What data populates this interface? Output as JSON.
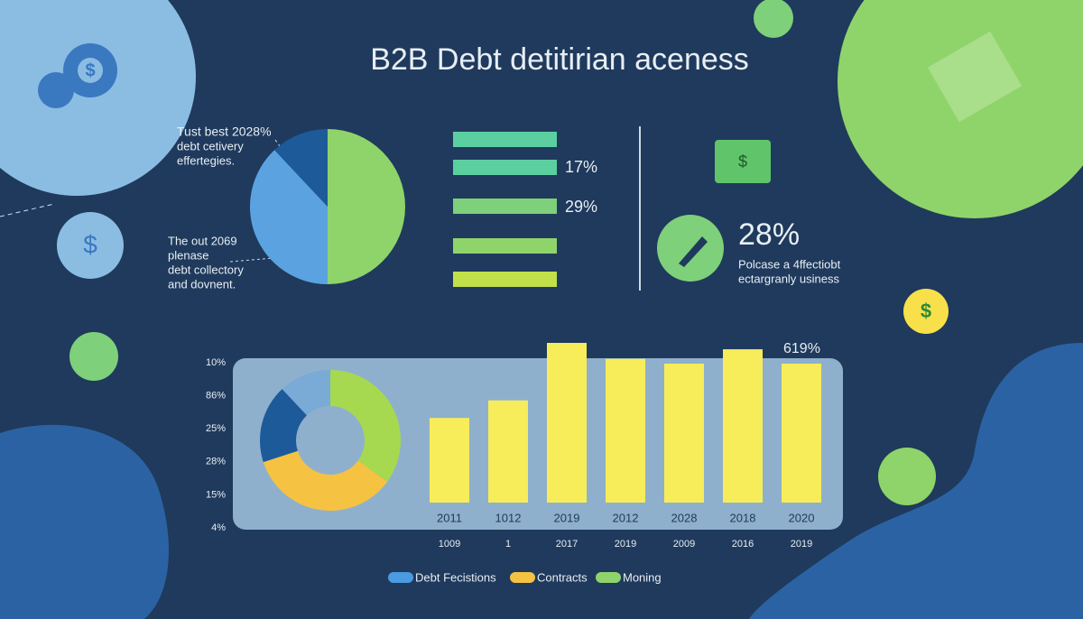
{
  "title": "B2B Debt detitirian aceness",
  "pie": {
    "values": [
      50,
      38,
      12
    ],
    "colors": [
      "#8fd46a",
      "#5aa3e0",
      "#1d5a9a"
    ]
  },
  "pie_notes": [
    [
      "Tust best 2028%",
      "debt cetivery",
      "effertegies."
    ],
    [
      "The out 2069",
      "plenase",
      "debt collectory",
      "and dovnent."
    ]
  ],
  "bar_labels": [
    "17%",
    "29%"
  ],
  "stat": {
    "value": "28%",
    "text": [
      "Polcase a 4ffectiobt",
      "ectargranly usiness"
    ]
  },
  "chart_data": {
    "type": "bar",
    "categories": [
      "2011",
      "1012",
      "2019",
      "2012",
      "2028",
      "2018",
      "2020"
    ],
    "sub_labels": [
      "1009",
      "1",
      "2017",
      "2019",
      "2009",
      "2016",
      "2019"
    ],
    "values": [
      53,
      64,
      100,
      90,
      87,
      96,
      87
    ],
    "color": "#f7ec5a",
    "ylim": [
      0,
      100
    ],
    "axis_labels": [
      "10%",
      "86%",
      "25%",
      "28%",
      "15%",
      "4%"
    ],
    "annotation": "619%",
    "donut": {
      "values": [
        35,
        35,
        18,
        12
      ],
      "colors": [
        "#a6d94f",
        "#f5c242",
        "#1d5a9a",
        "#7aaad6"
      ]
    },
    "series": [
      {
        "name": "Debt Fecistions",
        "color": "#4a9be0"
      },
      {
        "name": "Contracts",
        "color": "#f5c242"
      },
      {
        "name": "Moning",
        "color": "#8fd46a"
      }
    ]
  }
}
